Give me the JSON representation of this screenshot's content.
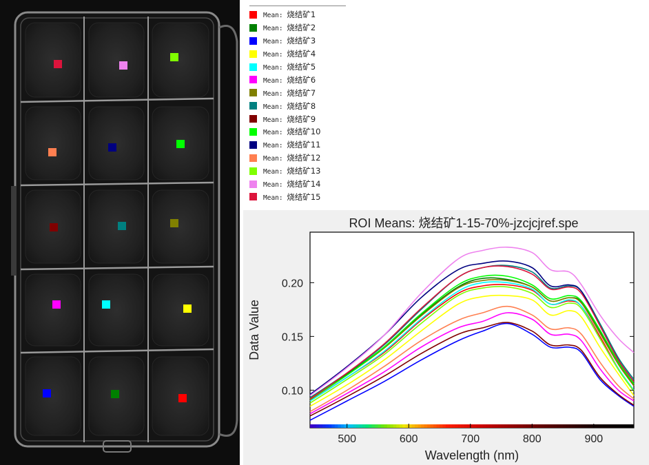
{
  "legend": {
    "prefix": "Mean: ",
    "items": [
      {
        "name": "烧结矿1",
        "color": "#ff0000"
      },
      {
        "name": "烧结矿2",
        "color": "#008000"
      },
      {
        "name": "烧结矿3",
        "color": "#0000ff"
      },
      {
        "name": "烧结矿4",
        "color": "#ffff00"
      },
      {
        "name": "烧结矿5",
        "color": "#00ffff"
      },
      {
        "name": "烧结矿6",
        "color": "#ff00ff"
      },
      {
        "name": "烧结矿7",
        "color": "#808000"
      },
      {
        "name": "烧结矿8",
        "color": "#008080"
      },
      {
        "name": "烧结矿9",
        "color": "#800000"
      },
      {
        "name": "烧结矿10",
        "color": "#00ff00"
      },
      {
        "name": "烧结矿11",
        "color": "#000080"
      },
      {
        "name": "烧结矿12",
        "color": "#ff7f50"
      },
      {
        "name": "烧结矿13",
        "color": "#7fff00"
      },
      {
        "name": "烧结矿14",
        "color": "#ee82ee"
      },
      {
        "name": "烧结矿15",
        "color": "#dc143c"
      }
    ]
  },
  "photo": {
    "markers": [
      {
        "roi": "烧结矿15",
        "color": "#dc143c"
      },
      {
        "roi": "烧结矿14",
        "color": "#ee82ee"
      },
      {
        "roi": "烧结矿13",
        "color": "#7fff00"
      },
      {
        "roi": "烧结矿12",
        "color": "#ff7f50"
      },
      {
        "roi": "烧结矿11",
        "color": "#000080"
      },
      {
        "roi": "烧结矿10",
        "color": "#00ff00"
      },
      {
        "roi": "烧结矿9",
        "color": "#800000"
      },
      {
        "roi": "烧结矿8",
        "color": "#008080"
      },
      {
        "roi": "烧结矿7",
        "color": "#808000"
      },
      {
        "roi": "烧结矿6",
        "color": "#ff00ff"
      },
      {
        "roi": "烧结矿5",
        "color": "#00ffff"
      },
      {
        "roi": "烧结矿4",
        "color": "#ffff00"
      },
      {
        "roi": "烧结矿3",
        "color": "#0000ff"
      },
      {
        "roi": "烧结矿2",
        "color": "#008000"
      },
      {
        "roi": "烧结矿1",
        "color": "#ff0000"
      }
    ]
  },
  "chart_data": {
    "type": "line",
    "title": "ROI Means: 烧结矿1-15-70%-jzcjcjref.spe",
    "xlabel": "Wavelength (nm)",
    "ylabel": "Data Value",
    "xlim": [
      440,
      965
    ],
    "ylim": [
      0.065,
      0.247
    ],
    "xticks": [
      500,
      600,
      700,
      800,
      900
    ],
    "yticks": [
      0.1,
      0.15,
      0.2
    ],
    "x": [
      440,
      500,
      560,
      620,
      680,
      720,
      760,
      800,
      830,
      860,
      880,
      910,
      940,
      965
    ],
    "series": [
      {
        "name": "烧结矿1",
        "color": "#ff0000",
        "values": [
          0.09,
          0.112,
          0.135,
          0.165,
          0.19,
          0.197,
          0.198,
          0.193,
          0.18,
          0.183,
          0.178,
          0.15,
          0.12,
          0.1
        ]
      },
      {
        "name": "烧结矿2",
        "color": "#008000",
        "values": [
          0.092,
          0.115,
          0.14,
          0.17,
          0.196,
          0.204,
          0.203,
          0.196,
          0.183,
          0.186,
          0.182,
          0.155,
          0.125,
          0.105
        ]
      },
      {
        "name": "烧结矿3",
        "color": "#0000ff",
        "values": [
          0.072,
          0.09,
          0.108,
          0.128,
          0.146,
          0.155,
          0.162,
          0.152,
          0.14,
          0.14,
          0.135,
          0.11,
          0.095,
          0.085
        ]
      },
      {
        "name": "烧结矿4",
        "color": "#ffff00",
        "values": [
          0.085,
          0.105,
          0.128,
          0.155,
          0.18,
          0.187,
          0.188,
          0.184,
          0.17,
          0.174,
          0.168,
          0.14,
          0.115,
          0.095
        ]
      },
      {
        "name": "烧结矿5",
        "color": "#00ffff",
        "values": [
          0.09,
          0.112,
          0.136,
          0.166,
          0.192,
          0.2,
          0.2,
          0.194,
          0.18,
          0.184,
          0.178,
          0.148,
          0.12,
          0.1
        ]
      },
      {
        "name": "烧结矿6",
        "color": "#ff00ff",
        "values": [
          0.078,
          0.097,
          0.117,
          0.14,
          0.158,
          0.164,
          0.172,
          0.166,
          0.152,
          0.152,
          0.146,
          0.12,
          0.1,
          0.09
        ]
      },
      {
        "name": "烧结矿7",
        "color": "#808000",
        "values": [
          0.091,
          0.114,
          0.139,
          0.169,
          0.195,
          0.202,
          0.202,
          0.196,
          0.183,
          0.186,
          0.181,
          0.153,
          0.124,
          0.104
        ]
      },
      {
        "name": "烧结矿8",
        "color": "#008080",
        "values": [
          0.093,
          0.116,
          0.142,
          0.175,
          0.205,
          0.214,
          0.216,
          0.21,
          0.195,
          0.197,
          0.192,
          0.162,
          0.13,
          0.11
        ]
      },
      {
        "name": "烧结矿9",
        "color": "#800000",
        "values": [
          0.076,
          0.094,
          0.113,
          0.134,
          0.152,
          0.158,
          0.163,
          0.155,
          0.142,
          0.142,
          0.137,
          0.112,
          0.096,
          0.086
        ]
      },
      {
        "name": "烧结矿10",
        "color": "#00ff00",
        "values": [
          0.092,
          0.114,
          0.14,
          0.171,
          0.198,
          0.206,
          0.206,
          0.198,
          0.185,
          0.188,
          0.183,
          0.156,
          0.126,
          0.106
        ]
      },
      {
        "name": "烧结矿11",
        "color": "#000080",
        "values": [
          0.096,
          0.122,
          0.151,
          0.186,
          0.212,
          0.218,
          0.22,
          0.214,
          0.197,
          0.198,
          0.192,
          0.16,
          0.128,
          0.108
        ]
      },
      {
        "name": "烧结矿12",
        "color": "#ff7f50",
        "values": [
          0.08,
          0.1,
          0.122,
          0.146,
          0.165,
          0.172,
          0.178,
          0.17,
          0.157,
          0.158,
          0.152,
          0.126,
          0.104,
          0.092
        ]
      },
      {
        "name": "烧结矿13",
        "color": "#7fff00",
        "values": [
          0.088,
          0.11,
          0.133,
          0.162,
          0.188,
          0.195,
          0.196,
          0.19,
          0.177,
          0.181,
          0.176,
          0.148,
          0.119,
          0.099
        ]
      },
      {
        "name": "烧结矿14",
        "color": "#ee82ee",
        "values": [
          0.095,
          0.121,
          0.151,
          0.19,
          0.222,
          0.23,
          0.233,
          0.228,
          0.212,
          0.21,
          0.198,
          0.17,
          0.148,
          0.135
        ]
      },
      {
        "name": "烧结矿15",
        "color": "#dc143c",
        "values": [
          0.092,
          0.116,
          0.143,
          0.176,
          0.205,
          0.214,
          0.215,
          0.208,
          0.194,
          0.196,
          0.19,
          0.16,
          0.128,
          0.108
        ]
      }
    ]
  }
}
